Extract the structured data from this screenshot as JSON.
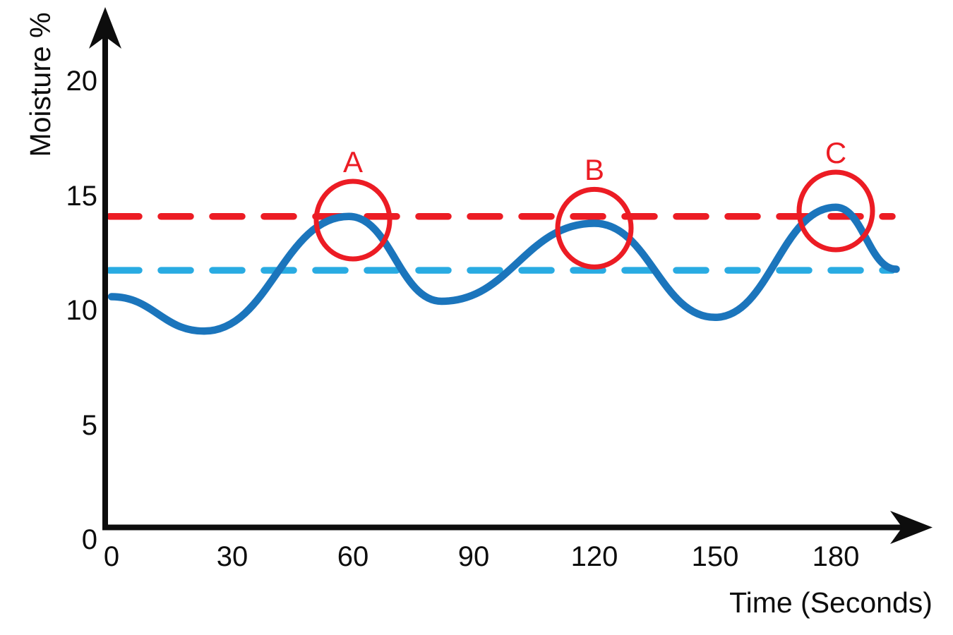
{
  "axes": {
    "x": {
      "label": "Time (Seconds)",
      "ticks": [
        "0",
        "30",
        "60",
        "90",
        "120",
        "150",
        "180"
      ]
    },
    "y": {
      "label": "Moisture %",
      "ticks": [
        "0",
        "5",
        "10",
        "15",
        "20"
      ]
    }
  },
  "colors": {
    "curve_blue": "#1b75bc",
    "threshold_red": "#ec1c24",
    "threshold_cyan": "#29abe2",
    "axis_black": "#0d0d0d"
  },
  "chart_data": {
    "type": "line",
    "title": "",
    "xlabel": "Time (Seconds)",
    "ylabel": "Moisture %",
    "xlim": [
      0,
      200
    ],
    "ylim": [
      0,
      21.5
    ],
    "x_ticks": [
      0,
      30,
      60,
      90,
      120,
      150,
      180
    ],
    "y_ticks": [
      0,
      5,
      10,
      15,
      20
    ],
    "grid": false,
    "legend": false,
    "series": [
      {
        "name": "moisture",
        "color": "#1b75bc",
        "points": [
          [
            0,
            10.6
          ],
          [
            23,
            9.1
          ],
          [
            59,
            14.1
          ],
          [
            82,
            10.4
          ],
          [
            120,
            13.8
          ],
          [
            150,
            9.7
          ],
          [
            180,
            14.5
          ],
          [
            195,
            11.8
          ]
        ]
      }
    ],
    "reference_lines": [
      {
        "name": "upper-threshold",
        "value": 14.1,
        "color": "#ec1c24",
        "style": "dashed"
      },
      {
        "name": "lower-threshold",
        "value": 11.75,
        "color": "#29abe2",
        "style": "dashed"
      }
    ],
    "annotations": [
      {
        "label": "A",
        "x": 60,
        "y": 14.0
      },
      {
        "label": "B",
        "x": 120,
        "y": 13.65
      },
      {
        "label": "C",
        "x": 180,
        "y": 14.4
      }
    ]
  }
}
